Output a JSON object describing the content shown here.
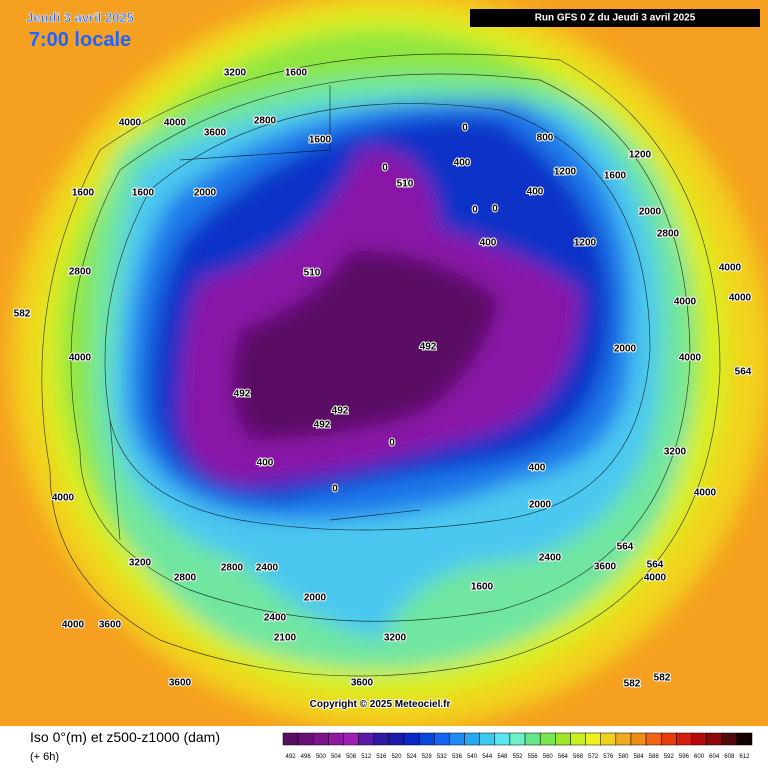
{
  "header": {
    "date": "Jeudi 3 avril 2025",
    "time": "7:00 locale",
    "run": "Run GFS 0 Z du Jeudi 3 avril 2025"
  },
  "map": {
    "copyright": "Copyright © 2025 Meteociel.fr",
    "contour_labels": [
      3200,
      1600,
      4000,
      4000,
      3600,
      2800,
      1600,
      0,
      800,
      0,
      510,
      400,
      1200,
      1600,
      1200,
      400,
      0,
      0,
      400,
      1200,
      2800,
      2000,
      4000,
      4000,
      4000,
      2000,
      4000,
      3200,
      4000,
      2000,
      2400,
      3600,
      4000,
      1600,
      3200,
      2000,
      2800,
      2400,
      3200,
      2800,
      4000,
      3600,
      4000,
      4000,
      2800,
      1600,
      1600,
      2000,
      510,
      492,
      492,
      492,
      492,
      400,
      0,
      0,
      400,
      582,
      582,
      582,
      564,
      564,
      564,
      3600,
      3600,
      2400,
      2100
    ]
  },
  "legend": {
    "label": "Iso 0°(m) et z500-z1000 (dam)",
    "lead": "(+ 6h)",
    "values": [
      492,
      496,
      500,
      504,
      508,
      512,
      516,
      520,
      524,
      528,
      532,
      536,
      540,
      544,
      548,
      552,
      556,
      560,
      564,
      568,
      572,
      576,
      580,
      584,
      588,
      592,
      596,
      600,
      604,
      608,
      612
    ],
    "colors": [
      "#5a0d64",
      "#6a0f78",
      "#7d148c",
      "#8f1aa0",
      "#9f1fb4",
      "#5a1aa8",
      "#2d1aa0",
      "#1a1aa8",
      "#0a28c8",
      "#0a46dc",
      "#1464f0",
      "#1e8cf0",
      "#28aaf0",
      "#3cc8f0",
      "#5ae6f0",
      "#6ef0c8",
      "#64e68c",
      "#78e650",
      "#a0e628",
      "#c8f01e",
      "#f0f01e",
      "#f0d21e",
      "#f0aa1e",
      "#f08c14",
      "#f06414",
      "#e63c0a",
      "#d21e0a",
      "#b40a0a",
      "#8c0a0a",
      "#500a0a",
      "#140000"
    ]
  }
}
